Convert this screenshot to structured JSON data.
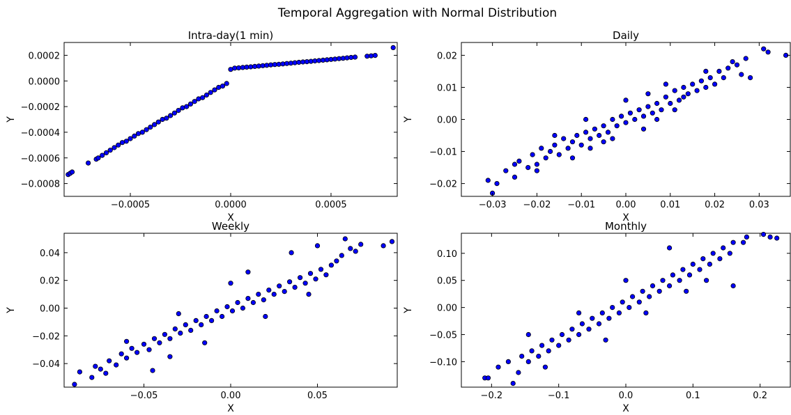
{
  "figure": {
    "title": "Temporal Aggregation with Normal Distribution"
  },
  "chart_data": [
    {
      "type": "scatter",
      "title": "Intra-day(1 min)",
      "xlabel": "X",
      "ylabel": "Y",
      "xlim": [
        -0.00083,
        0.00083
      ],
      "ylim": [
        -0.0009,
        0.0003
      ],
      "xticks": [
        -0.0005,
        0.0,
        0.0005
      ],
      "xtick_labels": [
        "−0.0005",
        "0.0000",
        "0.0005"
      ],
      "yticks": [
        -0.0008,
        -0.0006,
        -0.0004,
        -0.0002,
        0.0,
        0.0002
      ],
      "ytick_labels": [
        "−0.0008",
        "−0.0006",
        "−0.0004",
        "−0.0002",
        "0.0000",
        "0.0002"
      ],
      "grid": false,
      "marker_color": "#0000ff",
      "points": [
        [
          -0.00081,
          -0.00073
        ],
        [
          -0.0008,
          -0.00072
        ],
        [
          -0.00079,
          -0.00071
        ],
        [
          -0.00071,
          -0.00064
        ],
        [
          -0.00067,
          -0.00061
        ],
        [
          -0.00066,
          -0.0006
        ],
        [
          -0.00064,
          -0.00058
        ],
        [
          -0.00062,
          -0.00056
        ],
        [
          -0.0006,
          -0.00054
        ],
        [
          -0.00058,
          -0.00052
        ],
        [
          -0.00056,
          -0.0005
        ],
        [
          -0.00054,
          -0.00048
        ],
        [
          -0.00052,
          -0.00047
        ],
        [
          -0.0005,
          -0.00045
        ],
        [
          -0.00048,
          -0.00043
        ],
        [
          -0.00046,
          -0.00041
        ],
        [
          -0.00044,
          -0.0004
        ],
        [
          -0.00042,
          -0.00038
        ],
        [
          -0.0004,
          -0.00036
        ],
        [
          -0.00038,
          -0.00034
        ],
        [
          -0.00036,
          -0.00032
        ],
        [
          -0.00034,
          -0.0003
        ],
        [
          -0.00032,
          -0.00029
        ],
        [
          -0.0003,
          -0.00027
        ],
        [
          -0.00028,
          -0.00025
        ],
        [
          -0.00026,
          -0.00023
        ],
        [
          -0.00024,
          -0.00021
        ],
        [
          -0.00022,
          -0.0002
        ],
        [
          -0.0002,
          -0.00018
        ],
        [
          -0.00018,
          -0.00016
        ],
        [
          -0.00016,
          -0.00014
        ],
        [
          -0.00014,
          -0.00013
        ],
        [
          -0.00012,
          -0.00011
        ],
        [
          -0.0001,
          -9e-05
        ],
        [
          -8e-05,
          -7e-05
        ],
        [
          -6e-05,
          -5e-05
        ],
        [
          -4e-05,
          -4e-05
        ],
        [
          -2e-05,
          -2e-05
        ],
        [
          0.0,
          9e-05
        ],
        [
          2e-05,
          0.0001
        ],
        [
          4e-05,
          0.000102
        ],
        [
          6e-05,
          0.000105
        ],
        [
          8e-05,
          0.000108
        ],
        [
          0.0001,
          0.00011
        ],
        [
          0.00012,
          0.000113
        ],
        [
          0.00014,
          0.000116
        ],
        [
          0.00016,
          0.000119
        ],
        [
          0.00018,
          0.000122
        ],
        [
          0.0002,
          0.000125
        ],
        [
          0.00022,
          0.000128
        ],
        [
          0.00024,
          0.00013
        ],
        [
          0.00026,
          0.000133
        ],
        [
          0.00028,
          0.000136
        ],
        [
          0.0003,
          0.000139
        ],
        [
          0.00032,
          0.000142
        ],
        [
          0.00034,
          0.000145
        ],
        [
          0.00036,
          0.000148
        ],
        [
          0.00038,
          0.00015
        ],
        [
          0.0004,
          0.000153
        ],
        [
          0.00042,
          0.000156
        ],
        [
          0.00044,
          0.000159
        ],
        [
          0.00046,
          0.000162
        ],
        [
          0.00048,
          0.000165
        ],
        [
          0.0005,
          0.000168
        ],
        [
          0.00052,
          0.000171
        ],
        [
          0.00054,
          0.000174
        ],
        [
          0.00056,
          0.000177
        ],
        [
          0.00058,
          0.00018
        ],
        [
          0.0006,
          0.000183
        ],
        [
          0.00062,
          0.000186
        ],
        [
          0.00068,
          0.000193
        ],
        [
          0.0007,
          0.000196
        ],
        [
          0.00072,
          0.000199
        ],
        [
          0.00081,
          0.00026
        ]
      ]
    },
    {
      "type": "scatter",
      "title": "Daily",
      "xlabel": "X",
      "ylabel": "Y",
      "xlim": [
        -0.037,
        0.037
      ],
      "ylim": [
        -0.024,
        0.024
      ],
      "xticks": [
        -0.03,
        -0.02,
        -0.01,
        0.0,
        0.01,
        0.02,
        0.03
      ],
      "xtick_labels": [
        "−0.03",
        "−0.02",
        "−0.01",
        "0.00",
        "0.01",
        "0.02",
        "0.03"
      ],
      "yticks": [
        -0.02,
        -0.01,
        0.0,
        0.01,
        0.02
      ],
      "ytick_labels": [
        "−0.02",
        "−0.01",
        "0.00",
        "0.01",
        "0.02"
      ],
      "grid": false,
      "marker_color": "#0000ff",
      "points": [
        [
          -0.03,
          -0.023
        ],
        [
          -0.031,
          -0.019
        ],
        [
          -0.029,
          -0.02
        ],
        [
          -0.027,
          -0.016
        ],
        [
          -0.025,
          -0.018
        ],
        [
          -0.024,
          -0.013
        ],
        [
          -0.022,
          -0.015
        ],
        [
          -0.021,
          -0.011
        ],
        [
          -0.02,
          -0.014
        ],
        [
          -0.019,
          -0.009
        ],
        [
          -0.018,
          -0.012
        ],
        [
          -0.017,
          -0.01
        ],
        [
          -0.016,
          -0.008
        ],
        [
          -0.015,
          -0.011
        ],
        [
          -0.014,
          -0.006
        ],
        [
          -0.013,
          -0.009
        ],
        [
          -0.012,
          -0.007
        ],
        [
          -0.011,
          -0.005
        ],
        [
          -0.01,
          -0.008
        ],
        [
          -0.009,
          -0.004
        ],
        [
          -0.008,
          -0.006
        ],
        [
          -0.007,
          -0.003
        ],
        [
          -0.006,
          -0.005
        ],
        [
          -0.005,
          -0.002
        ],
        [
          -0.004,
          -0.004
        ],
        [
          -0.003,
          0.0
        ],
        [
          -0.002,
          -0.002
        ],
        [
          -0.001,
          0.001
        ],
        [
          0.0,
          -0.001
        ],
        [
          0.001,
          0.002
        ],
        [
          0.002,
          0.0
        ],
        [
          0.003,
          0.003
        ],
        [
          0.004,
          0.001
        ],
        [
          0.005,
          0.004
        ],
        [
          0.006,
          0.002
        ],
        [
          0.007,
          0.005
        ],
        [
          0.008,
          0.003
        ],
        [
          0.009,
          0.007
        ],
        [
          0.01,
          0.005
        ],
        [
          0.011,
          0.009
        ],
        [
          0.012,
          0.006
        ],
        [
          0.013,
          0.01
        ],
        [
          0.014,
          0.008
        ],
        [
          0.015,
          0.011
        ],
        [
          0.016,
          0.009
        ],
        [
          0.017,
          0.012
        ],
        [
          0.018,
          0.01
        ],
        [
          0.019,
          0.013
        ],
        [
          0.02,
          0.011
        ],
        [
          0.021,
          0.015
        ],
        [
          0.022,
          0.013
        ],
        [
          0.023,
          0.016
        ],
        [
          0.024,
          0.018
        ],
        [
          0.025,
          0.017
        ],
        [
          0.026,
          0.014
        ],
        [
          0.027,
          0.019
        ],
        [
          0.028,
          0.013
        ],
        [
          0.031,
          0.022
        ],
        [
          0.032,
          0.021
        ],
        [
          0.036,
          0.02
        ],
        [
          -0.012,
          -0.012
        ],
        [
          -0.008,
          -0.009
        ],
        [
          -0.005,
          -0.007
        ],
        [
          0.005,
          0.008
        ],
        [
          0.009,
          0.011
        ],
        [
          0.013,
          0.007
        ],
        [
          -0.016,
          -0.005
        ],
        [
          -0.009,
          0.0
        ],
        [
          0.0,
          0.006
        ],
        [
          0.004,
          -0.003
        ],
        [
          0.018,
          0.015
        ],
        [
          -0.02,
          -0.016
        ],
        [
          -0.025,
          -0.014
        ],
        [
          -0.003,
          -0.006
        ],
        [
          0.007,
          0.0
        ],
        [
          0.011,
          0.003
        ]
      ]
    },
    {
      "type": "scatter",
      "title": "Weekly",
      "xlabel": "X",
      "ylabel": "Y",
      "xlim": [
        -0.096,
        0.096
      ],
      "ylim": [
        -0.057,
        0.054
      ],
      "xticks": [
        -0.05,
        0.0,
        0.05
      ],
      "xtick_labels": [
        "−0.05",
        "0.00",
        "0.05"
      ],
      "yticks": [
        -0.04,
        -0.02,
        0.0,
        0.02,
        0.04
      ],
      "ytick_labels": [
        "−0.04",
        "−0.02",
        "0.00",
        "0.02",
        "0.04"
      ],
      "grid": false,
      "marker_color": "#0000ff",
      "points": [
        [
          -0.09,
          -0.055
        ],
        [
          -0.087,
          -0.046
        ],
        [
          -0.08,
          -0.05
        ],
        [
          -0.078,
          -0.042
        ],
        [
          -0.075,
          -0.044
        ],
        [
          -0.072,
          -0.047
        ],
        [
          -0.07,
          -0.038
        ],
        [
          -0.066,
          -0.041
        ],
        [
          -0.063,
          -0.033
        ],
        [
          -0.06,
          -0.036
        ],
        [
          -0.057,
          -0.029
        ],
        [
          -0.054,
          -0.032
        ],
        [
          -0.05,
          -0.026
        ],
        [
          -0.047,
          -0.03
        ],
        [
          -0.044,
          -0.022
        ],
        [
          -0.041,
          -0.025
        ],
        [
          -0.038,
          -0.019
        ],
        [
          -0.035,
          -0.022
        ],
        [
          -0.032,
          -0.015
        ],
        [
          -0.029,
          -0.018
        ],
        [
          -0.026,
          -0.012
        ],
        [
          -0.023,
          -0.016
        ],
        [
          -0.02,
          -0.009
        ],
        [
          -0.017,
          -0.012
        ],
        [
          -0.014,
          -0.006
        ],
        [
          -0.011,
          -0.009
        ],
        [
          -0.008,
          -0.002
        ],
        [
          -0.005,
          -0.006
        ],
        [
          -0.002,
          0.001
        ],
        [
          0.001,
          -0.002
        ],
        [
          0.004,
          0.004
        ],
        [
          0.007,
          0.0
        ],
        [
          0.01,
          0.007
        ],
        [
          0.013,
          0.004
        ],
        [
          0.016,
          0.01
        ],
        [
          0.019,
          0.006
        ],
        [
          0.022,
          0.013
        ],
        [
          0.025,
          0.01
        ],
        [
          0.028,
          0.016
        ],
        [
          0.031,
          0.012
        ],
        [
          0.034,
          0.019
        ],
        [
          0.037,
          0.015
        ],
        [
          0.04,
          0.022
        ],
        [
          0.043,
          0.018
        ],
        [
          0.046,
          0.025
        ],
        [
          0.049,
          0.021
        ],
        [
          0.052,
          0.028
        ],
        [
          0.055,
          0.024
        ],
        [
          0.058,
          0.031
        ],
        [
          0.061,
          0.034
        ],
        [
          0.064,
          0.038
        ],
        [
          0.066,
          0.05
        ],
        [
          0.069,
          0.043
        ],
        [
          0.072,
          0.041
        ],
        [
          0.075,
          0.046
        ],
        [
          0.088,
          0.045
        ],
        [
          0.093,
          0.048
        ],
        [
          -0.045,
          -0.045
        ],
        [
          -0.03,
          -0.004
        ],
        [
          0.0,
          0.018
        ],
        [
          0.02,
          -0.006
        ],
        [
          0.035,
          0.04
        ],
        [
          -0.06,
          -0.024
        ],
        [
          -0.015,
          -0.025
        ],
        [
          0.045,
          0.01
        ],
        [
          -0.035,
          -0.035
        ],
        [
          0.01,
          0.026
        ],
        [
          0.05,
          0.045
        ]
      ]
    },
    {
      "type": "scatter",
      "title": "Monthly",
      "xlabel": "X",
      "ylabel": "Y",
      "xlim": [
        -0.245,
        0.245
      ],
      "ylim": [
        -0.147,
        0.137
      ],
      "xticks": [
        -0.2,
        -0.1,
        0.0,
        0.1,
        0.2
      ],
      "xtick_labels": [
        "−0.2",
        "−0.1",
        "0.0",
        "0.1",
        "0.2"
      ],
      "yticks": [
        -0.1,
        -0.05,
        0.0,
        0.05,
        0.1
      ],
      "ytick_labels": [
        "−0.10",
        "−0.05",
        "0.00",
        "0.05",
        "0.10"
      ],
      "grid": false,
      "marker_color": "#0000ff",
      "points": [
        [
          -0.21,
          -0.13
        ],
        [
          -0.205,
          -0.13
        ],
        [
          -0.19,
          -0.11
        ],
        [
          -0.168,
          -0.14
        ],
        [
          -0.175,
          -0.1
        ],
        [
          -0.16,
          -0.12
        ],
        [
          -0.155,
          -0.09
        ],
        [
          -0.145,
          -0.1
        ],
        [
          -0.14,
          -0.08
        ],
        [
          -0.13,
          -0.09
        ],
        [
          -0.125,
          -0.07
        ],
        [
          -0.115,
          -0.08
        ],
        [
          -0.11,
          -0.06
        ],
        [
          -0.1,
          -0.07
        ],
        [
          -0.095,
          -0.05
        ],
        [
          -0.085,
          -0.06
        ],
        [
          -0.08,
          -0.04
        ],
        [
          -0.07,
          -0.05
        ],
        [
          -0.065,
          -0.03
        ],
        [
          -0.055,
          -0.04
        ],
        [
          -0.05,
          -0.02
        ],
        [
          -0.04,
          -0.03
        ],
        [
          -0.035,
          -0.01
        ],
        [
          -0.025,
          -0.02
        ],
        [
          -0.02,
          0.0
        ],
        [
          -0.01,
          -0.01
        ],
        [
          -0.005,
          0.01
        ],
        [
          0.005,
          0.0
        ],
        [
          0.01,
          0.02
        ],
        [
          0.02,
          0.01
        ],
        [
          0.025,
          0.03
        ],
        [
          0.035,
          0.02
        ],
        [
          0.04,
          0.04
        ],
        [
          0.05,
          0.03
        ],
        [
          0.055,
          0.05
        ],
        [
          0.065,
          0.04
        ],
        [
          0.07,
          0.06
        ],
        [
          0.08,
          0.05
        ],
        [
          0.085,
          0.07
        ],
        [
          0.095,
          0.06
        ],
        [
          0.1,
          0.08
        ],
        [
          0.11,
          0.07
        ],
        [
          0.115,
          0.09
        ],
        [
          0.125,
          0.08
        ],
        [
          0.13,
          0.1
        ],
        [
          0.14,
          0.09
        ],
        [
          0.145,
          0.11
        ],
        [
          0.155,
          0.1
        ],
        [
          0.16,
          0.12
        ],
        [
          0.175,
          0.12
        ],
        [
          0.18,
          0.13
        ],
        [
          0.205,
          0.135
        ],
        [
          0.215,
          0.13
        ],
        [
          0.225,
          0.128
        ],
        [
          0.16,
          0.04
        ],
        [
          0.065,
          0.11
        ],
        [
          -0.145,
          -0.05
        ],
        [
          -0.07,
          -0.01
        ],
        [
          0.0,
          0.05
        ],
        [
          0.03,
          -0.01
        ],
        [
          -0.03,
          -0.06
        ],
        [
          0.09,
          0.03
        ],
        [
          -0.12,
          -0.11
        ],
        [
          0.12,
          0.05
        ]
      ]
    }
  ]
}
